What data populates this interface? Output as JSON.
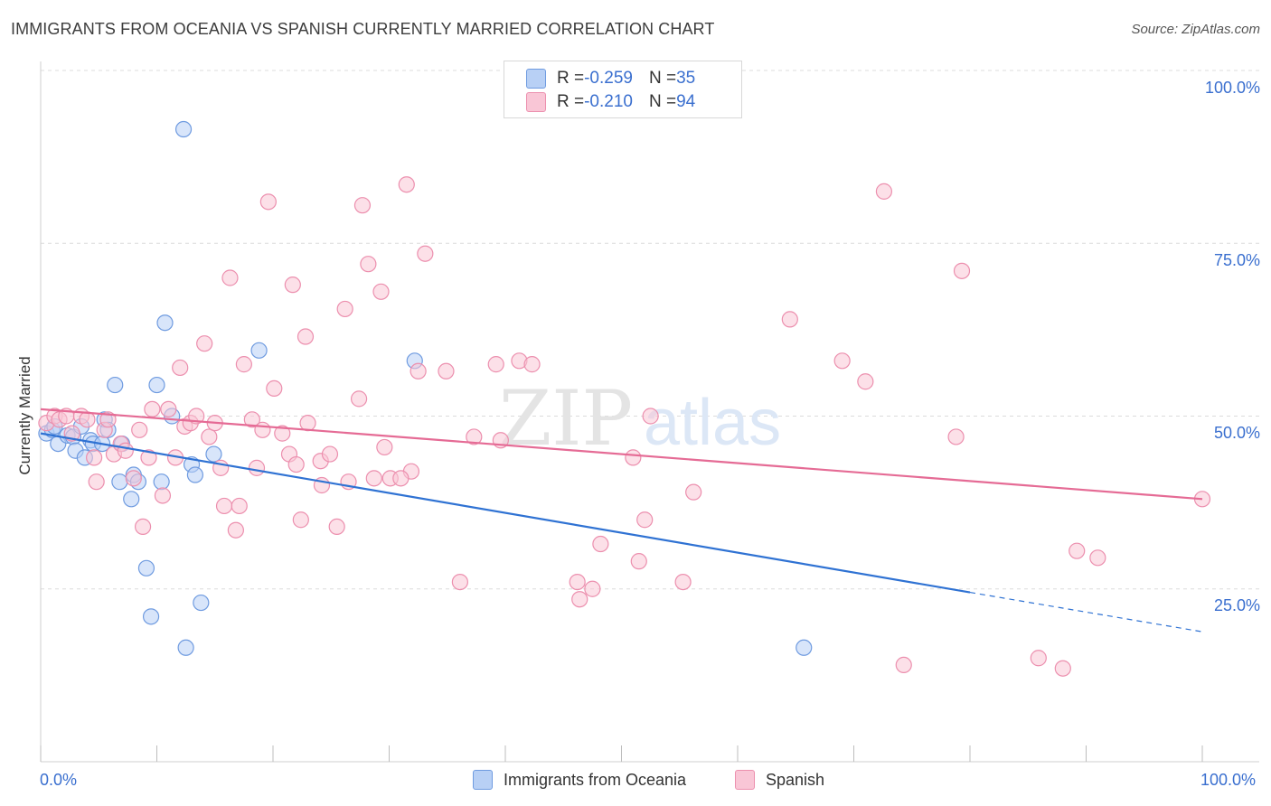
{
  "header": {
    "title": "IMMIGRANTS FROM OCEANIA VS SPANISH CURRENTLY MARRIED CORRELATION CHART",
    "source": "Source: ZipAtlas.com"
  },
  "watermark": {
    "zip": "ZIP",
    "atlas": "atlas"
  },
  "legend_top": [
    {
      "r_label": "R = ",
      "r_value": "-0.259",
      "n_label": "N = ",
      "n_value": "35"
    },
    {
      "r_label": "R = ",
      "r_value": "-0.210",
      "n_label": "N = ",
      "n_value": "94"
    }
  ],
  "legend_bottom": [
    {
      "label": "Immigrants from Oceania"
    },
    {
      "label": "Spanish"
    }
  ],
  "colors": {
    "blue_fill": "#b8d0f5",
    "blue_stroke": "#6f9be0",
    "blue_line": "#2f72d3",
    "pink_fill": "#f9c6d6",
    "pink_stroke": "#ec8fae",
    "pink_line": "#e56b95",
    "axis_text": "#3a6fcf"
  },
  "chart_data": {
    "type": "scatter",
    "title": "IMMIGRANTS FROM OCEANIA VS SPANISH CURRENTLY MARRIED CORRELATION CHART",
    "xlabel": "",
    "ylabel": "Currently Married",
    "xlim": [
      0,
      100
    ],
    "ylim": [
      0,
      100
    ],
    "x_tick_labels": [
      "0.0%",
      "100.0%"
    ],
    "y_tick_labels": [
      "25.0%",
      "50.0%",
      "75.0%",
      "100.0%"
    ],
    "y_ticks": [
      25,
      50,
      75,
      100
    ],
    "grid": "horizontal dashed",
    "legend_placement": "top-center and bottom",
    "series": [
      {
        "name": "Immigrants from Oceania",
        "color": "#b8d0f5",
        "trend": {
          "x0": 0,
          "y0": 47.5,
          "x1": 80,
          "y1": 24.5,
          "dash_to": 100,
          "dash_y": 18.8
        },
        "points": [
          [
            0.5,
            47.5
          ],
          [
            1.0,
            48.0
          ],
          [
            1.5,
            46.0
          ],
          [
            2.3,
            47.2
          ],
          [
            2.8,
            47.0
          ],
          [
            3.0,
            45.0
          ],
          [
            3.5,
            48.5
          ],
          [
            3.8,
            44.0
          ],
          [
            4.3,
            46.5
          ],
          [
            4.5,
            46.0
          ],
          [
            5.3,
            46.0
          ],
          [
            5.5,
            49.5
          ],
          [
            5.8,
            48.0
          ],
          [
            6.4,
            54.5
          ],
          [
            6.8,
            40.5
          ],
          [
            7.0,
            46.0
          ],
          [
            7.8,
            38.0
          ],
          [
            8.0,
            41.5
          ],
          [
            8.4,
            40.5
          ],
          [
            9.1,
            28.0
          ],
          [
            9.5,
            21.0
          ],
          [
            10.0,
            54.5
          ],
          [
            10.4,
            40.5
          ],
          [
            10.7,
            63.5
          ],
          [
            11.3,
            50.0
          ],
          [
            12.3,
            91.5
          ],
          [
            12.5,
            16.5
          ],
          [
            13.0,
            43.0
          ],
          [
            13.3,
            41.5
          ],
          [
            13.8,
            23.0
          ],
          [
            14.9,
            44.5
          ],
          [
            18.8,
            59.5
          ],
          [
            32.2,
            58.0
          ],
          [
            65.7,
            16.5
          ],
          [
            1.2,
            48.5
          ]
        ]
      },
      {
        "name": "Spanish",
        "color": "#f9c6d6",
        "trend": {
          "x0": 0,
          "y0": 51.0,
          "x1": 100,
          "y1": 38.0
        },
        "points": [
          [
            0.5,
            49.0
          ],
          [
            1.2,
            50.0
          ],
          [
            1.6,
            49.5
          ],
          [
            2.2,
            50.0
          ],
          [
            2.7,
            47.5
          ],
          [
            3.5,
            50.0
          ],
          [
            4.0,
            49.5
          ],
          [
            4.6,
            44.0
          ],
          [
            4.8,
            40.5
          ],
          [
            5.5,
            48.0
          ],
          [
            5.8,
            49.5
          ],
          [
            6.3,
            44.5
          ],
          [
            6.9,
            46.0
          ],
          [
            7.3,
            45.0
          ],
          [
            8.0,
            41.0
          ],
          [
            8.5,
            48.0
          ],
          [
            8.8,
            34.0
          ],
          [
            9.3,
            44.0
          ],
          [
            9.6,
            51.0
          ],
          [
            10.5,
            38.5
          ],
          [
            11.0,
            51.0
          ],
          [
            11.6,
            44.0
          ],
          [
            12.0,
            57.0
          ],
          [
            12.4,
            48.5
          ],
          [
            12.9,
            49.0
          ],
          [
            13.4,
            50.0
          ],
          [
            14.1,
            60.5
          ],
          [
            14.5,
            47.0
          ],
          [
            15.0,
            49.0
          ],
          [
            15.5,
            42.5
          ],
          [
            15.8,
            37.0
          ],
          [
            16.3,
            70.0
          ],
          [
            16.8,
            33.5
          ],
          [
            17.1,
            37.0
          ],
          [
            17.5,
            57.5
          ],
          [
            18.2,
            49.5
          ],
          [
            18.6,
            42.5
          ],
          [
            19.1,
            48.0
          ],
          [
            19.6,
            81.0
          ],
          [
            20.1,
            54.0
          ],
          [
            20.8,
            47.5
          ],
          [
            21.4,
            44.5
          ],
          [
            21.7,
            69.0
          ],
          [
            22.4,
            35.0
          ],
          [
            22.8,
            61.5
          ],
          [
            23.0,
            49.0
          ],
          [
            24.1,
            43.5
          ],
          [
            24.2,
            40.0
          ],
          [
            24.9,
            44.5
          ],
          [
            25.5,
            34.0
          ],
          [
            26.2,
            65.5
          ],
          [
            26.5,
            40.5
          ],
          [
            27.4,
            52.5
          ],
          [
            27.7,
            80.5
          ],
          [
            28.2,
            72.0
          ],
          [
            28.7,
            41.0
          ],
          [
            29.3,
            68.0
          ],
          [
            29.6,
            45.5
          ],
          [
            30.1,
            41.0
          ],
          [
            31.5,
            83.5
          ],
          [
            31.9,
            42.0
          ],
          [
            32.5,
            56.5
          ],
          [
            33.1,
            73.5
          ],
          [
            34.9,
            56.5
          ],
          [
            36.1,
            26.0
          ],
          [
            37.3,
            47.0
          ],
          [
            39.2,
            57.5
          ],
          [
            39.6,
            46.5
          ],
          [
            41.2,
            58.0
          ],
          [
            42.3,
            57.5
          ],
          [
            46.2,
            26.0
          ],
          [
            46.4,
            23.5
          ],
          [
            47.5,
            25.0
          ],
          [
            48.2,
            31.5
          ],
          [
            51.5,
            29.0
          ],
          [
            51.0,
            44.0
          ],
          [
            52.0,
            35.0
          ],
          [
            52.5,
            50.0
          ],
          [
            55.3,
            26.0
          ],
          [
            56.2,
            39.0
          ],
          [
            64.5,
            64.0
          ],
          [
            69.0,
            58.0
          ],
          [
            71.0,
            55.0
          ],
          [
            72.6,
            82.5
          ],
          [
            74.3,
            14.0
          ],
          [
            78.8,
            47.0
          ],
          [
            79.3,
            71.0
          ],
          [
            85.9,
            15.0
          ],
          [
            88.0,
            13.5
          ],
          [
            89.2,
            30.5
          ],
          [
            91.0,
            29.5
          ],
          [
            100.0,
            38.0
          ],
          [
            31.0,
            41.0
          ],
          [
            22.0,
            43.0
          ]
        ]
      }
    ]
  }
}
